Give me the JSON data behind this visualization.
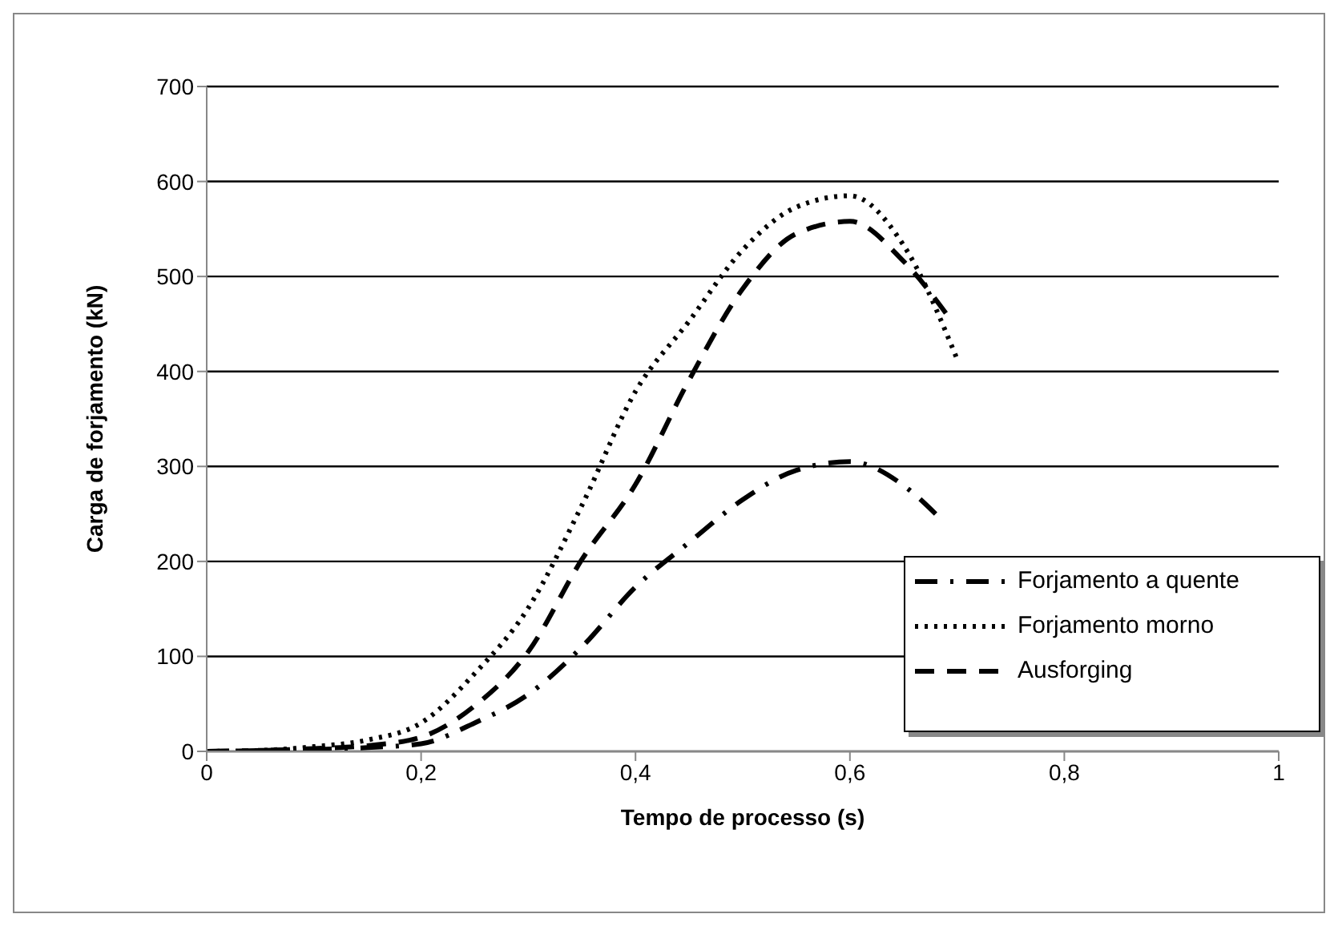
{
  "chart_data": {
    "type": "line",
    "xlabel": "Tempo de processo (s)",
    "ylabel": "Carga de forjamento (kN)",
    "xlim": [
      0,
      1
    ],
    "xticks": [
      0,
      {
        "value": 0.2,
        "label": "0,2"
      },
      {
        "value": 0.4,
        "label": "0,4"
      },
      {
        "value": 0.6,
        "label": "0,6"
      },
      {
        "value": 0.8,
        "label": "0,8"
      },
      1
    ],
    "ylim": [
      0,
      700
    ],
    "yticks": [
      0,
      100,
      200,
      300,
      400,
      500,
      600,
      700
    ],
    "grid": "y",
    "legend": "bottom right",
    "marker": "none",
    "series": [
      {
        "name": "Forjamento a quente",
        "color": "#000000",
        "line_style": "dashdot",
        "x": [
          0,
          0.05,
          0.1,
          0.15,
          0.2,
          0.25,
          0.3,
          0.35,
          0.4,
          0.45,
          0.5,
          0.55,
          0.6,
          0.65,
          0.68
        ],
        "values": [
          0,
          1,
          2,
          4,
          8,
          30,
          60,
          110,
          173,
          220,
          265,
          296,
          305,
          280,
          250
        ]
      },
      {
        "name": "Forjamento morno",
        "color": "#000000",
        "line_style": "dotted",
        "x": [
          0,
          0.05,
          0.1,
          0.15,
          0.2,
          0.25,
          0.3,
          0.35,
          0.4,
          0.45,
          0.5,
          0.55,
          0.6,
          0.65,
          0.7
        ],
        "values": [
          0,
          1,
          5,
          12,
          30,
          82,
          151,
          259,
          379,
          453,
          528,
          573,
          585,
          533,
          413
        ]
      },
      {
        "name": "Ausforging",
        "color": "#000000",
        "line_style": "dashed",
        "x": [
          0,
          0.05,
          0.1,
          0.15,
          0.2,
          0.25,
          0.3,
          0.35,
          0.4,
          0.45,
          0.5,
          0.55,
          0.6,
          0.65,
          0.695
        ],
        "values": [
          0,
          1,
          3,
          6,
          15,
          48,
          105,
          202,
          281,
          391,
          487,
          545,
          558,
          516,
          453
        ]
      }
    ]
  }
}
